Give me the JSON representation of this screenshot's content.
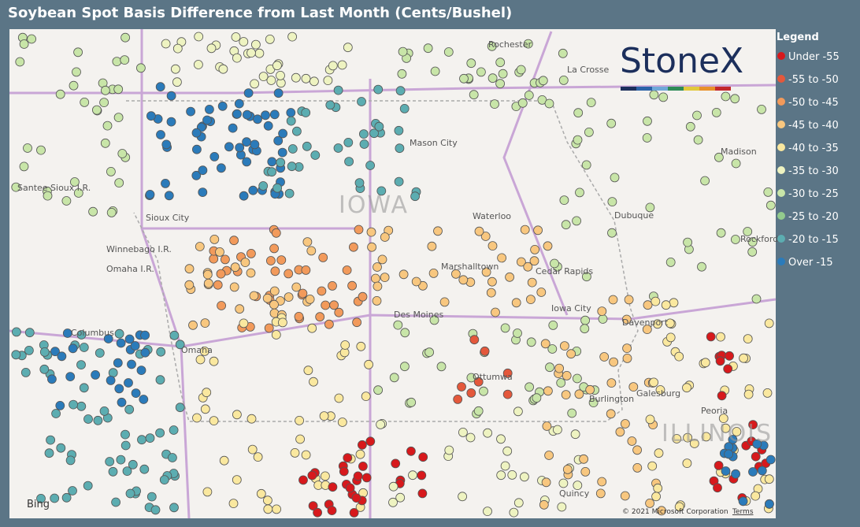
{
  "title": "Soybean Spot Basis Difference from Last Month (Cents/Bushel)",
  "legend": {
    "title": "Legend",
    "items": [
      {
        "label": "Under -55",
        "color": "#d7191c"
      },
      {
        "label": "-55 to -50",
        "color": "#e4583b"
      },
      {
        "label": "-50 to -45",
        "color": "#f29a5b"
      },
      {
        "label": "-45 to -40",
        "color": "#f8c77f"
      },
      {
        "label": "-40 to -35",
        "color": "#fae89f"
      },
      {
        "label": "-35 to -30",
        "color": "#eef3c1"
      },
      {
        "label": "-30 to -25",
        "color": "#c8e5a8"
      },
      {
        "label": "-25 to -20",
        "color": "#93cb8d"
      },
      {
        "label": "-20 to -15",
        "color": "#5cadb1"
      },
      {
        "label": "Over -15",
        "color": "#2b7bba"
      }
    ]
  },
  "map": {
    "logo": "StoneX",
    "states": [
      "IOWA",
      "ILLINOIS"
    ],
    "places": [
      "Rochester",
      "La Crosse",
      "Madison",
      "Mason City",
      "Sioux City",
      "Dubuque",
      "Waterloo",
      "Cedar Rapids",
      "Marshalltown",
      "Rockford",
      "Winnebago I.R.",
      "Omaha I.R.",
      "Santee Sioux I.R.",
      "Des Moines",
      "Iowa City",
      "Davenport",
      "Columbus",
      "Omaha",
      "Ottumwa",
      "Galesburg",
      "Burlington",
      "Peoria",
      "Quincy"
    ],
    "attribution": "Bing",
    "copyright": "© 2021 Microsoft Corporation",
    "terms": "Terms"
  }
}
